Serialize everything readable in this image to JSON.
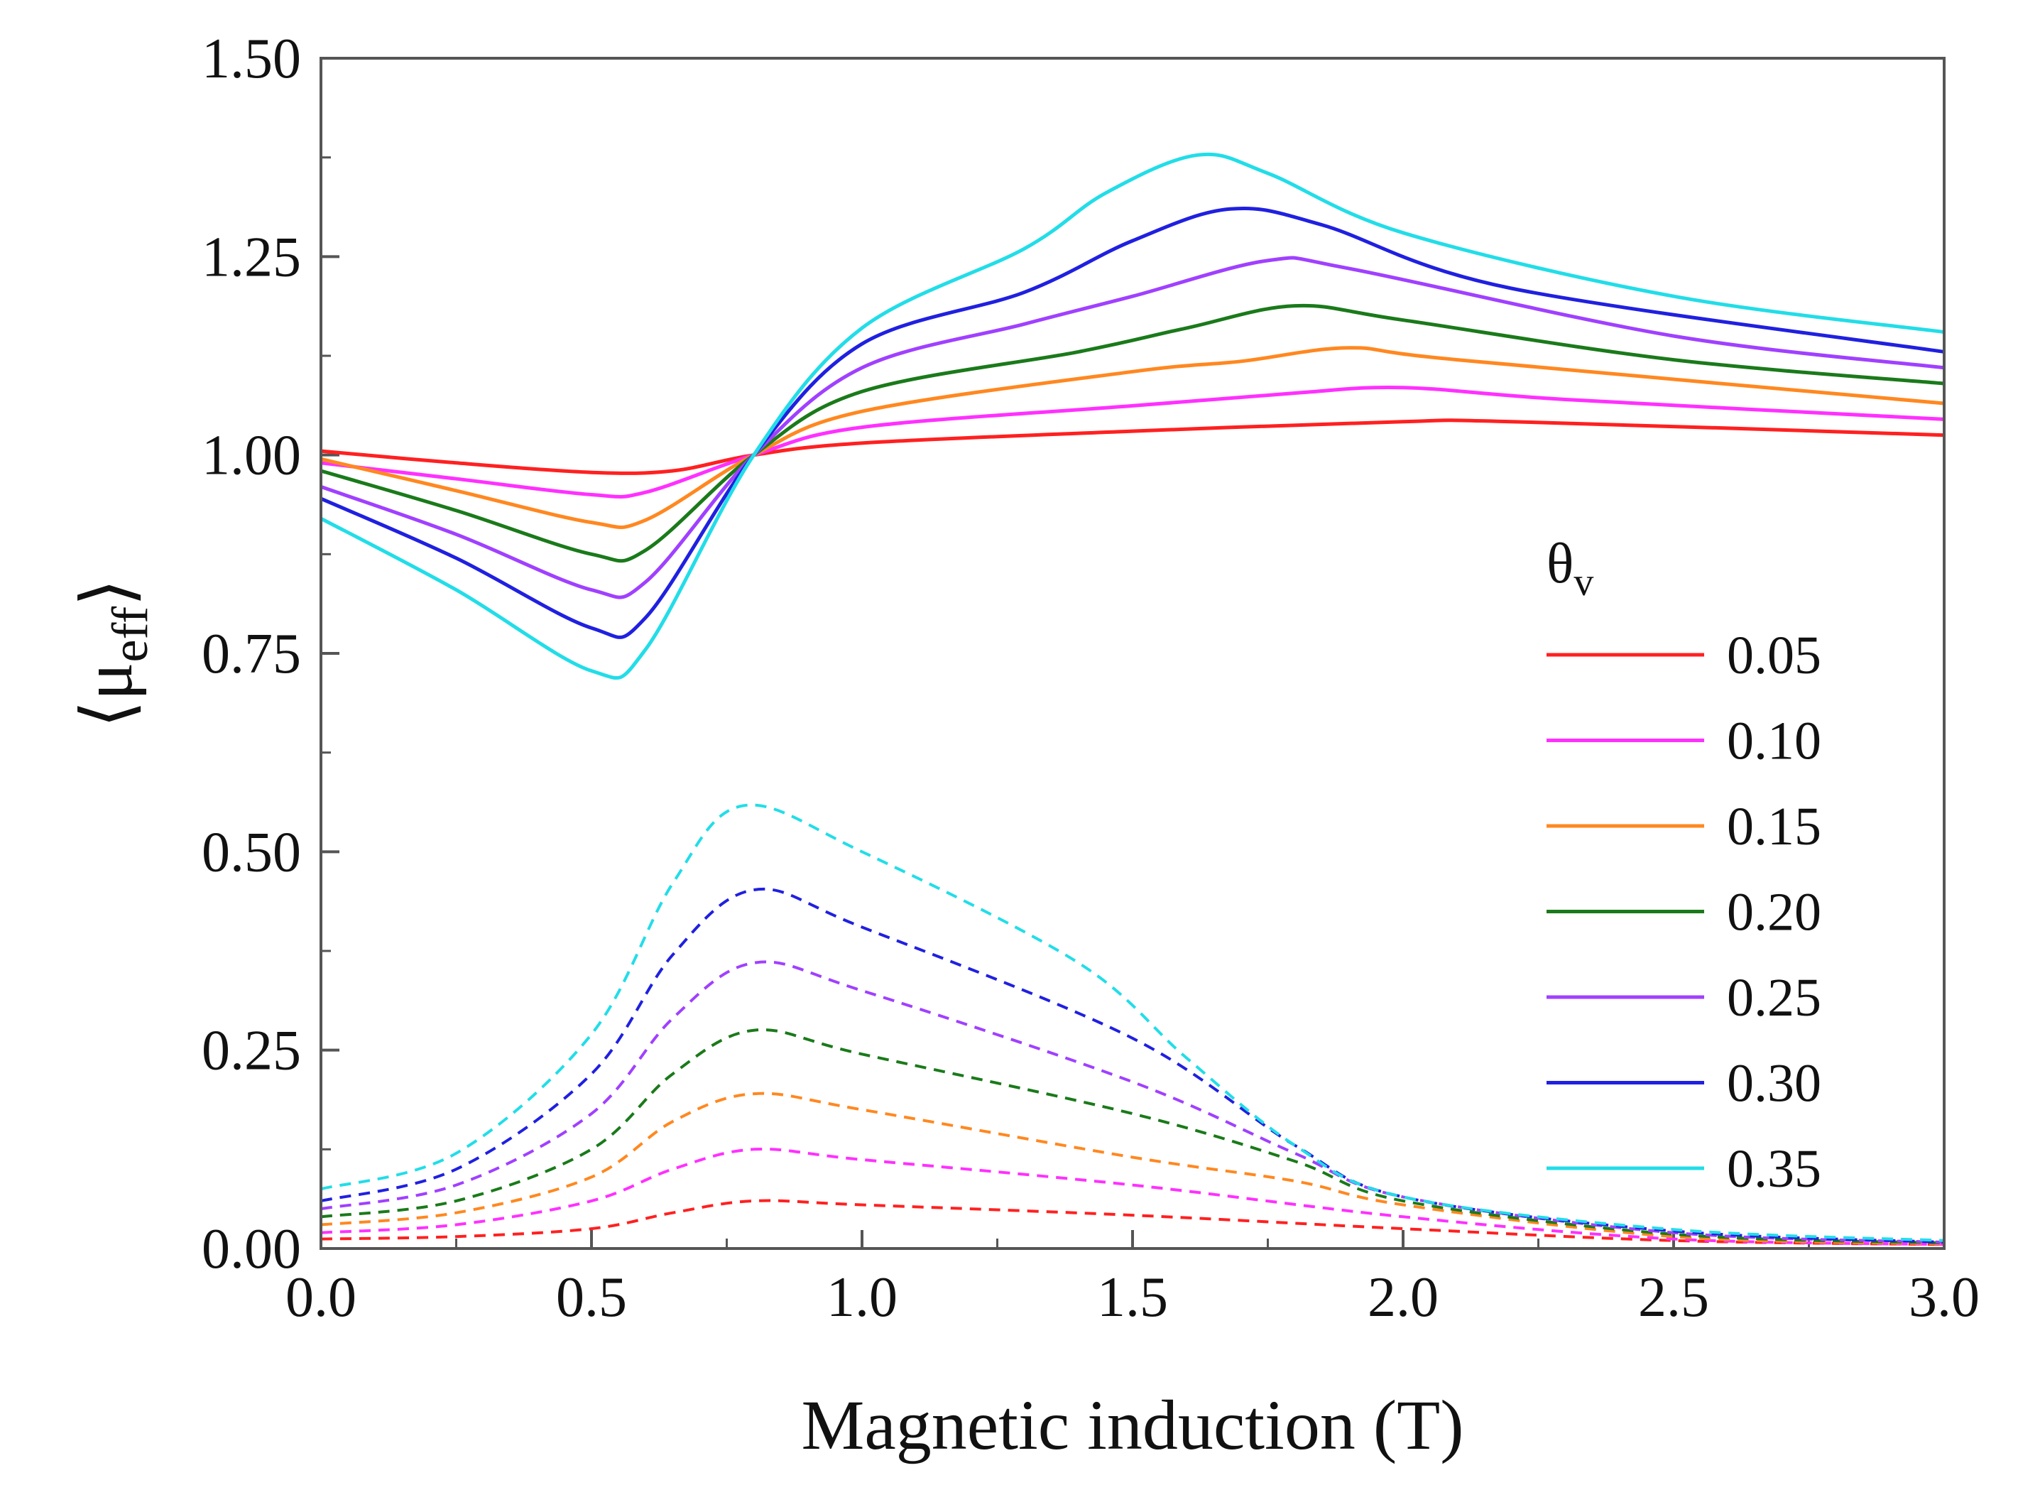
{
  "chart_data": {
    "type": "line",
    "title": "",
    "xlabel": "Magnetic induction (T)",
    "ylabel": {
      "base": "⟨μ",
      "sub": "eff",
      "close": "⟩"
    },
    "xlim": [
      0,
      3.0
    ],
    "ylim": [
      0,
      1.5
    ],
    "xticks": [
      "0.0",
      "0.5",
      "1.0",
      "1.5",
      "2.0",
      "2.5",
      "3.0"
    ],
    "yticks": [
      "0.00",
      "0.25",
      "0.50",
      "0.75",
      "1.00",
      "1.25",
      "1.50"
    ],
    "legend": {
      "title": {
        "base": "θ",
        "sub": "v"
      },
      "placement": "right-middle",
      "entries": [
        "0.05",
        "0.10",
        "0.15",
        "0.20",
        "0.25",
        "0.30",
        "0.35"
      ]
    },
    "series": [
      {
        "name": "0.05",
        "color": "#ff2020",
        "solid_points": [
          [
            0,
            1.005
          ],
          [
            0.25,
            0.99
          ],
          [
            0.5,
            0.978
          ],
          [
            0.65,
            0.98
          ],
          [
            0.8,
            1.0
          ],
          [
            1.0,
            1.015
          ],
          [
            1.5,
            1.03
          ],
          [
            2.0,
            1.042
          ],
          [
            2.2,
            1.042
          ],
          [
            3.0,
            1.025
          ]
        ],
        "dashed_points": [
          [
            0,
            0.012
          ],
          [
            0.25,
            0.015
          ],
          [
            0.5,
            0.025
          ],
          [
            0.65,
            0.045
          ],
          [
            0.8,
            0.06
          ],
          [
            1.0,
            0.055
          ],
          [
            1.5,
            0.042
          ],
          [
            2.0,
            0.025
          ],
          [
            2.5,
            0.01
          ],
          [
            3.0,
            0.005
          ]
        ]
      },
      {
        "name": "0.10",
        "color": "#ff30ff",
        "solid_points": [
          [
            0,
            0.99
          ],
          [
            0.25,
            0.97
          ],
          [
            0.5,
            0.95
          ],
          [
            0.6,
            0.953
          ],
          [
            0.8,
            1.0
          ],
          [
            1.0,
            1.035
          ],
          [
            1.5,
            1.062
          ],
          [
            1.8,
            1.078
          ],
          [
            2.0,
            1.085
          ],
          [
            2.3,
            1.07
          ],
          [
            3.0,
            1.045
          ]
        ],
        "dashed_points": [
          [
            0,
            0.02
          ],
          [
            0.25,
            0.03
          ],
          [
            0.5,
            0.06
          ],
          [
            0.65,
            0.1
          ],
          [
            0.8,
            0.125
          ],
          [
            1.0,
            0.112
          ],
          [
            1.5,
            0.08
          ],
          [
            2.0,
            0.04
          ],
          [
            2.5,
            0.012
          ],
          [
            3.0,
            0.005
          ]
        ]
      },
      {
        "name": "0.15",
        "color": "#ff8820",
        "solid_points": [
          [
            0,
            0.995
          ],
          [
            0.25,
            0.955
          ],
          [
            0.5,
            0.915
          ],
          [
            0.6,
            0.918
          ],
          [
            0.8,
            1.0
          ],
          [
            1.0,
            1.055
          ],
          [
            1.5,
            1.105
          ],
          [
            1.7,
            1.118
          ],
          [
            1.9,
            1.135
          ],
          [
            2.1,
            1.12
          ],
          [
            3.0,
            1.065
          ]
        ],
        "dashed_points": [
          [
            0,
            0.03
          ],
          [
            0.25,
            0.045
          ],
          [
            0.5,
            0.09
          ],
          [
            0.65,
            0.16
          ],
          [
            0.8,
            0.195
          ],
          [
            1.0,
            0.175
          ],
          [
            1.5,
            0.115
          ],
          [
            1.8,
            0.085
          ],
          [
            2.0,
            0.055
          ],
          [
            2.5,
            0.015
          ],
          [
            3.0,
            0.006
          ]
        ]
      },
      {
        "name": "0.20",
        "color": "#1a7a1a",
        "solid_points": [
          [
            0,
            0.98
          ],
          [
            0.25,
            0.93
          ],
          [
            0.5,
            0.875
          ],
          [
            0.6,
            0.88
          ],
          [
            0.8,
            1.0
          ],
          [
            1.0,
            1.08
          ],
          [
            1.4,
            1.13
          ],
          [
            1.6,
            1.16
          ],
          [
            1.8,
            1.188
          ],
          [
            2.0,
            1.17
          ],
          [
            2.5,
            1.12
          ],
          [
            3.0,
            1.09
          ]
        ],
        "dashed_points": [
          [
            0,
            0.04
          ],
          [
            0.25,
            0.06
          ],
          [
            0.5,
            0.125
          ],
          [
            0.65,
            0.22
          ],
          [
            0.8,
            0.275
          ],
          [
            1.0,
            0.245
          ],
          [
            1.5,
            0.17
          ],
          [
            1.8,
            0.11
          ],
          [
            2.0,
            0.06
          ],
          [
            2.5,
            0.018
          ],
          [
            3.0,
            0.007
          ]
        ]
      },
      {
        "name": "0.25",
        "color": "#a040ff",
        "solid_points": [
          [
            0,
            0.96
          ],
          [
            0.25,
            0.9
          ],
          [
            0.5,
            0.83
          ],
          [
            0.6,
            0.84
          ],
          [
            0.8,
            1.0
          ],
          [
            1.0,
            1.11
          ],
          [
            1.3,
            1.165
          ],
          [
            1.5,
            1.2
          ],
          [
            1.75,
            1.245
          ],
          [
            1.9,
            1.235
          ],
          [
            2.5,
            1.15
          ],
          [
            3.0,
            1.11
          ]
        ],
        "dashed_points": [
          [
            0,
            0.05
          ],
          [
            0.25,
            0.08
          ],
          [
            0.5,
            0.17
          ],
          [
            0.65,
            0.29
          ],
          [
            0.8,
            0.36
          ],
          [
            1.0,
            0.325
          ],
          [
            1.5,
            0.21
          ],
          [
            1.8,
            0.12
          ],
          [
            2.0,
            0.065
          ],
          [
            2.5,
            0.02
          ],
          [
            3.0,
            0.008
          ]
        ]
      },
      {
        "name": "0.30",
        "color": "#2020e0",
        "solid_points": [
          [
            0,
            0.945
          ],
          [
            0.25,
            0.87
          ],
          [
            0.5,
            0.782
          ],
          [
            0.6,
            0.795
          ],
          [
            0.8,
            1.0
          ],
          [
            1.0,
            1.14
          ],
          [
            1.3,
            1.205
          ],
          [
            1.5,
            1.27
          ],
          [
            1.68,
            1.31
          ],
          [
            1.85,
            1.29
          ],
          [
            2.2,
            1.21
          ],
          [
            3.0,
            1.13
          ]
        ],
        "dashed_points": [
          [
            0,
            0.06
          ],
          [
            0.25,
            0.1
          ],
          [
            0.5,
            0.22
          ],
          [
            0.65,
            0.37
          ],
          [
            0.8,
            0.452
          ],
          [
            1.0,
            0.405
          ],
          [
            1.5,
            0.265
          ],
          [
            1.8,
            0.13
          ],
          [
            2.0,
            0.065
          ],
          [
            2.5,
            0.022
          ],
          [
            3.0,
            0.008
          ]
        ]
      },
      {
        "name": "0.35",
        "color": "#22dde8",
        "solid_points": [
          [
            0,
            0.92
          ],
          [
            0.25,
            0.83
          ],
          [
            0.5,
            0.728
          ],
          [
            0.6,
            0.755
          ],
          [
            0.8,
            1.0
          ],
          [
            1.0,
            1.16
          ],
          [
            1.3,
            1.26
          ],
          [
            1.45,
            1.33
          ],
          [
            1.62,
            1.378
          ],
          [
            1.75,
            1.355
          ],
          [
            2.0,
            1.28
          ],
          [
            2.5,
            1.2
          ],
          [
            3.0,
            1.155
          ]
        ],
        "dashed_points": [
          [
            0,
            0.075
          ],
          [
            0.25,
            0.12
          ],
          [
            0.5,
            0.27
          ],
          [
            0.65,
            0.46
          ],
          [
            0.78,
            0.558
          ],
          [
            1.0,
            0.5
          ],
          [
            1.4,
            0.36
          ],
          [
            1.6,
            0.24
          ],
          [
            1.8,
            0.13
          ],
          [
            2.0,
            0.065
          ],
          [
            2.5,
            0.024
          ],
          [
            3.0,
            0.01
          ]
        ]
      }
    ]
  }
}
